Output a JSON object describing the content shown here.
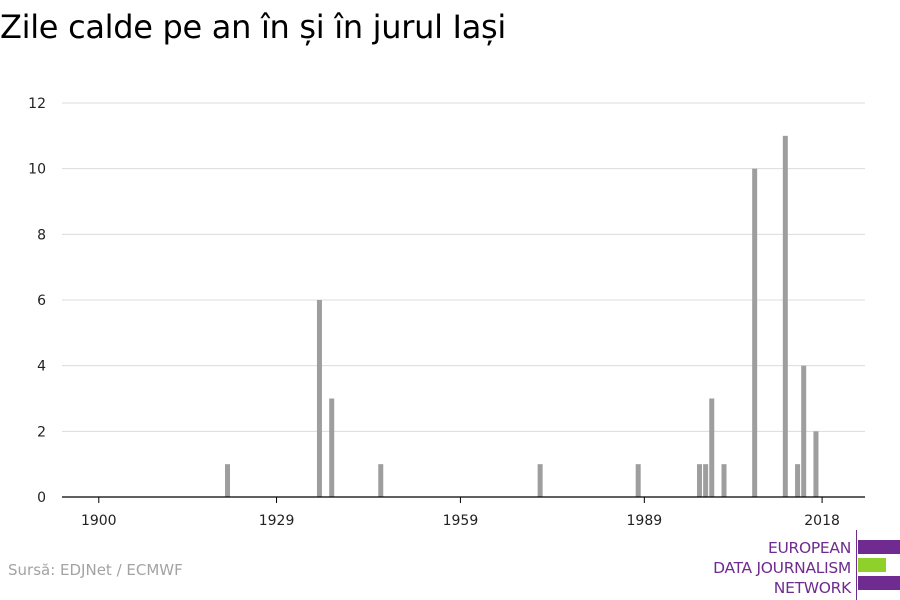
{
  "chart_data": {
    "type": "bar",
    "title": "Zile calde pe an în și în jurul Iași",
    "xlabel": "",
    "ylabel": "",
    "xlim": [
      1894,
      2025
    ],
    "ylim": [
      0,
      12
    ],
    "y_ticks": [
      0,
      2,
      4,
      6,
      8,
      10,
      12
    ],
    "x_ticks": [
      1900,
      1929,
      1959,
      1989,
      2018
    ],
    "grid": true,
    "bar_color": "#9e9e9e",
    "x": [
      1921,
      1936,
      1938,
      1946,
      1972,
      1988,
      1998,
      1999,
      2000,
      2002,
      2007,
      2012,
      2014,
      2015,
      2017
    ],
    "values": [
      1,
      6,
      3,
      1,
      1,
      1,
      1,
      1,
      3,
      1,
      10,
      11,
      1,
      4,
      2
    ]
  },
  "source": "Sursă: EDJNet / ECMWF",
  "logo": {
    "lines": [
      "EUROPEAN",
      "DATA JOURNALISM",
      "NETWORK"
    ],
    "colors": {
      "purple": "#6f2b8f",
      "green": "#8fd12a"
    }
  }
}
